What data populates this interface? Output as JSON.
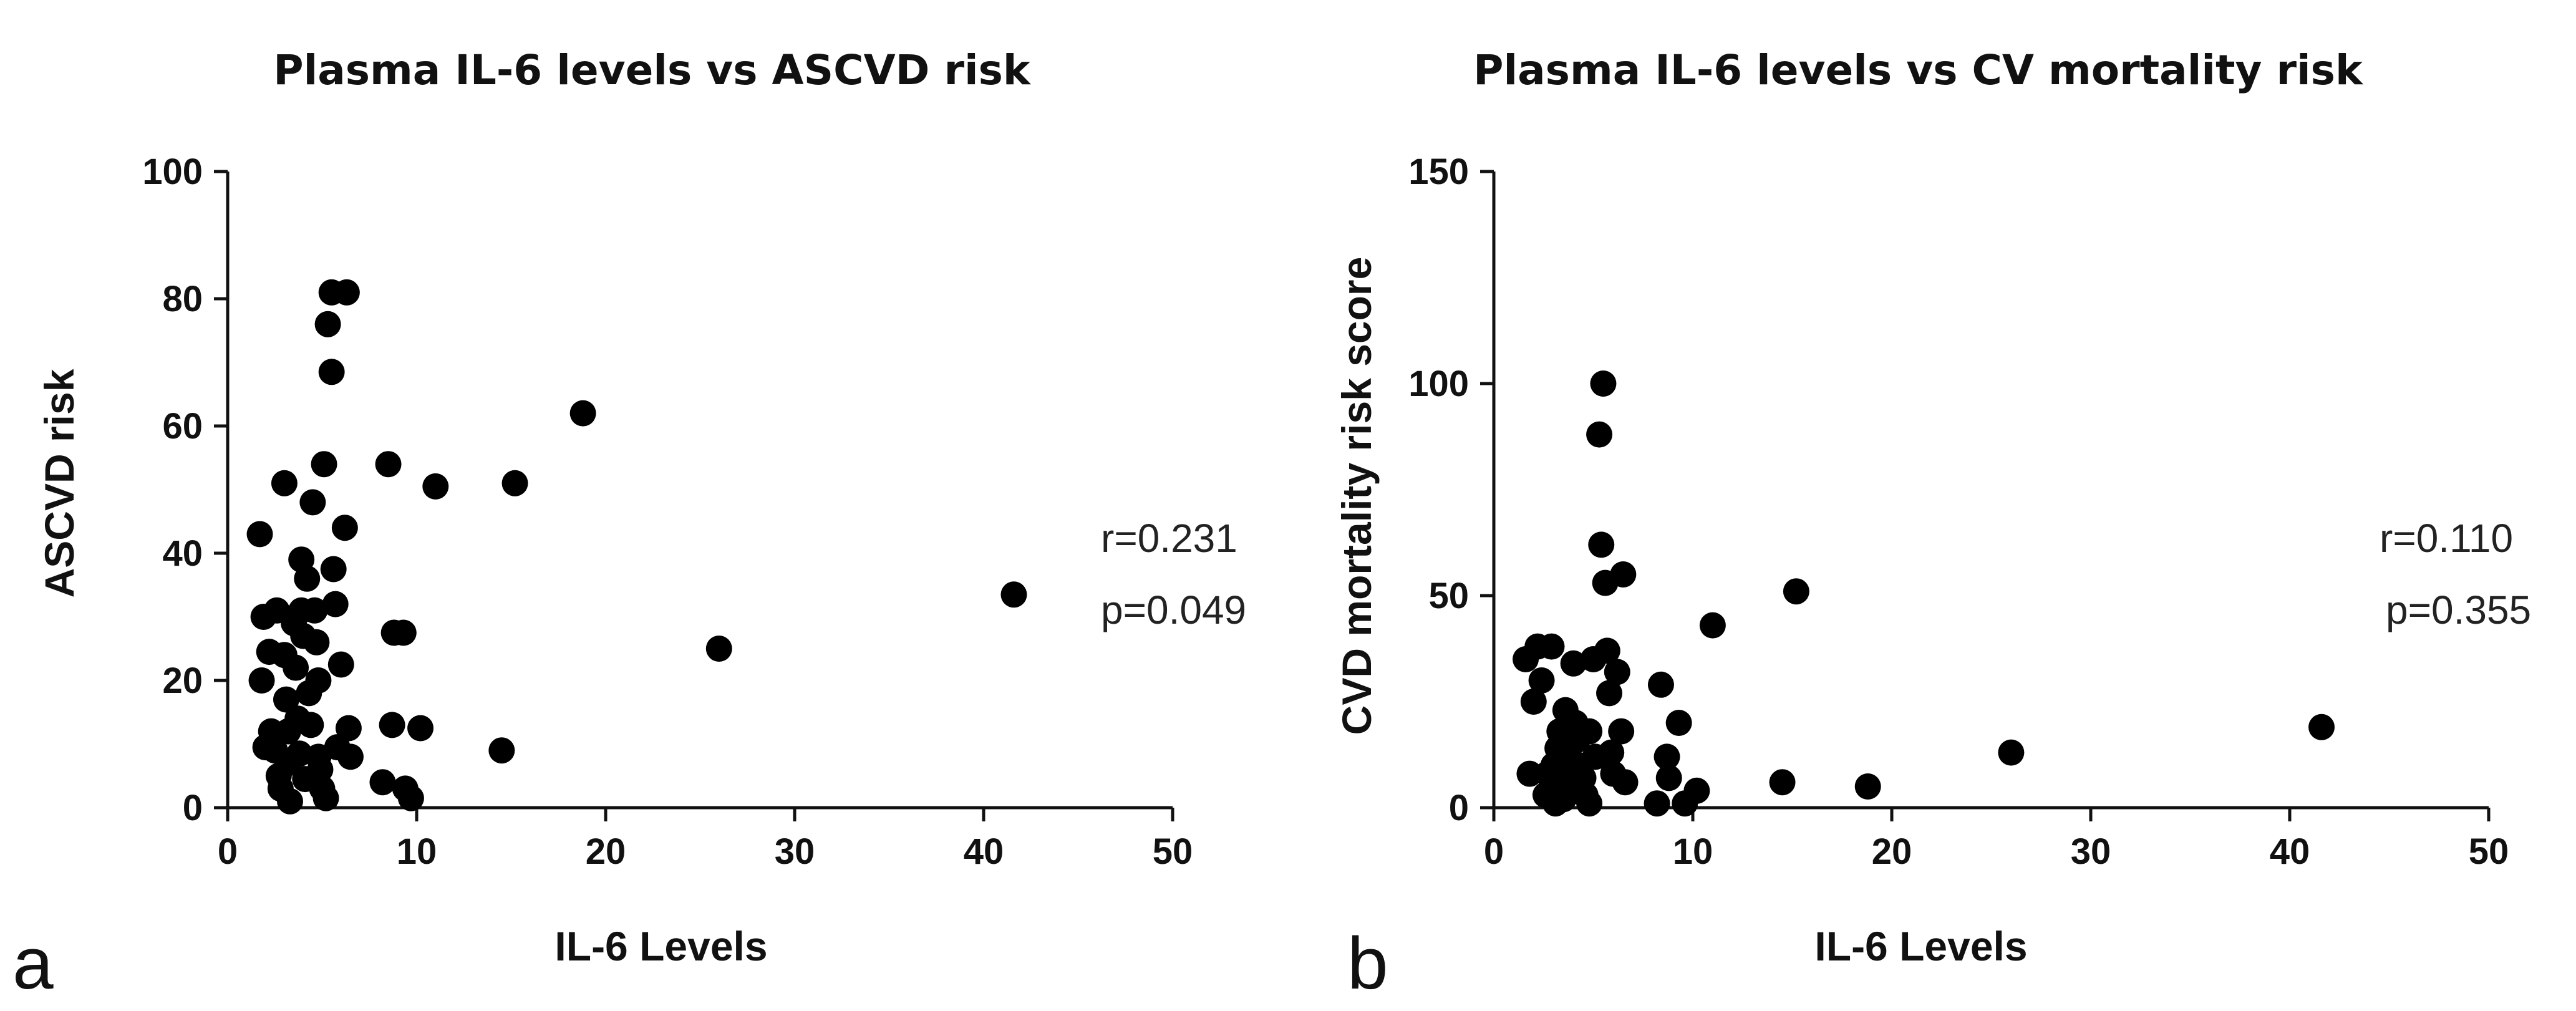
{
  "chart_data": [
    {
      "type": "scatter",
      "panel_label": "a",
      "title": "Plasma IL-6 levels vs ASCVD risk",
      "xlabel": "IL-6 Levels",
      "ylabel": "ASCVD risk",
      "xlim": [
        0,
        50
      ],
      "ylim": [
        0,
        100
      ],
      "xticks": [
        "0",
        "10",
        "20",
        "30",
        "40",
        "50"
      ],
      "yticks": [
        "0",
        "20",
        "40",
        "60",
        "80",
        "100"
      ],
      "grid": false,
      "annotations": [
        "r=0.231",
        "p=0.049"
      ],
      "points": [
        [
          1.7,
          43
        ],
        [
          1.9,
          30
        ],
        [
          1.8,
          20
        ],
        [
          2.0,
          9.5
        ],
        [
          2.2,
          24.5
        ],
        [
          2.3,
          12
        ],
        [
          2.5,
          9
        ],
        [
          2.6,
          31
        ],
        [
          2.7,
          5
        ],
        [
          2.8,
          3
        ],
        [
          3.0,
          51
        ],
        [
          3.0,
          24
        ],
        [
          3.1,
          17
        ],
        [
          3.2,
          12
        ],
        [
          3.2,
          7
        ],
        [
          3.3,
          1
        ],
        [
          3.5,
          29
        ],
        [
          3.6,
          22
        ],
        [
          3.7,
          14
        ],
        [
          3.8,
          8.5
        ],
        [
          3.9,
          39
        ],
        [
          3.9,
          31
        ],
        [
          4.0,
          27
        ],
        [
          4.1,
          4.5
        ],
        [
          4.2,
          36
        ],
        [
          4.3,
          18
        ],
        [
          4.4,
          13
        ],
        [
          4.5,
          48
        ],
        [
          4.6,
          31
        ],
        [
          4.7,
          26
        ],
        [
          4.8,
          20
        ],
        [
          4.8,
          8
        ],
        [
          4.9,
          6
        ],
        [
          5.0,
          3
        ],
        [
          5.1,
          54
        ],
        [
          5.2,
          1.5
        ],
        [
          5.3,
          76
        ],
        [
          5.5,
          81
        ],
        [
          5.5,
          68.5
        ],
        [
          5.6,
          37.5
        ],
        [
          5.7,
          32
        ],
        [
          5.8,
          9.5
        ],
        [
          6.0,
          22.5
        ],
        [
          6.2,
          44
        ],
        [
          6.3,
          81
        ],
        [
          6.4,
          12.5
        ],
        [
          6.5,
          8
        ],
        [
          8.2,
          4
        ],
        [
          8.5,
          54
        ],
        [
          8.7,
          13
        ],
        [
          8.8,
          27.5
        ],
        [
          9.3,
          27.5
        ],
        [
          9.4,
          3
        ],
        [
          9.7,
          1.5
        ],
        [
          10.2,
          12.5
        ],
        [
          11.0,
          50.5
        ],
        [
          14.5,
          9
        ],
        [
          15.2,
          51
        ],
        [
          18.8,
          62
        ],
        [
          26.0,
          25
        ],
        [
          41.6,
          33.5
        ]
      ]
    },
    {
      "type": "scatter",
      "panel_label": "b",
      "title": "Plasma IL-6 levels vs CV mortality risk",
      "xlabel": "IL-6 Levels",
      "ylabel": "CVD mortality risk score",
      "xlim": [
        0,
        50
      ],
      "ylim": [
        0,
        150
      ],
      "xticks": [
        "0",
        "10",
        "20",
        "30",
        "40",
        "50"
      ],
      "yticks": [
        "0",
        "50",
        "100",
        "150"
      ],
      "grid": false,
      "annotations": [
        "r=0.110",
        "p=0.355"
      ],
      "points": [
        [
          1.6,
          35
        ],
        [
          1.8,
          8
        ],
        [
          2.0,
          25
        ],
        [
          2.2,
          38
        ],
        [
          2.4,
          30
        ],
        [
          2.6,
          3
        ],
        [
          2.7,
          8
        ],
        [
          2.9,
          38
        ],
        [
          3.0,
          10
        ],
        [
          3.1,
          1
        ],
        [
          3.2,
          14
        ],
        [
          3.3,
          18
        ],
        [
          3.4,
          5
        ],
        [
          3.5,
          2
        ],
        [
          3.6,
          23
        ],
        [
          3.7,
          12
        ],
        [
          3.8,
          8
        ],
        [
          3.9,
          4
        ],
        [
          4.0,
          34
        ],
        [
          4.1,
          20
        ],
        [
          4.2,
          16
        ],
        [
          4.3,
          10
        ],
        [
          4.5,
          7
        ],
        [
          4.6,
          3
        ],
        [
          4.8,
          1
        ],
        [
          4.8,
          18
        ],
        [
          5.0,
          35
        ],
        [
          5.1,
          12
        ],
        [
          5.3,
          88
        ],
        [
          5.4,
          62
        ],
        [
          5.5,
          100
        ],
        [
          5.6,
          53
        ],
        [
          5.7,
          37
        ],
        [
          5.8,
          27
        ],
        [
          5.9,
          13
        ],
        [
          6.0,
          8
        ],
        [
          6.2,
          32
        ],
        [
          6.4,
          18
        ],
        [
          6.5,
          55
        ],
        [
          6.6,
          6
        ],
        [
          8.2,
          1
        ],
        [
          8.4,
          29
        ],
        [
          8.7,
          12
        ],
        [
          8.8,
          7
        ],
        [
          9.3,
          20
        ],
        [
          9.6,
          1
        ],
        [
          10.2,
          4
        ],
        [
          11.0,
          43
        ],
        [
          14.5,
          6
        ],
        [
          15.2,
          51
        ],
        [
          18.8,
          5
        ],
        [
          26.0,
          13
        ],
        [
          41.6,
          19
        ]
      ]
    }
  ]
}
